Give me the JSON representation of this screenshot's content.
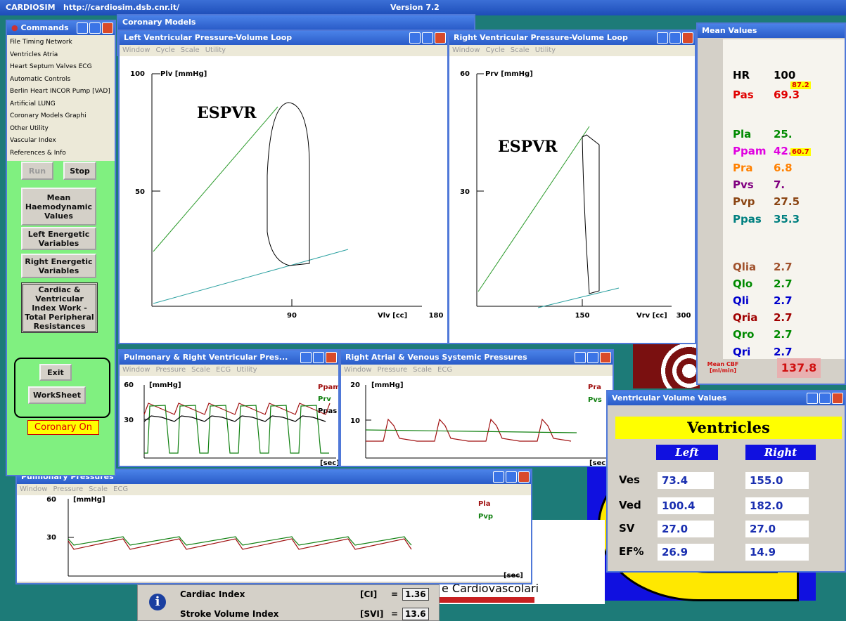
{
  "desktop": {
    "title": "CARDIOSIM",
    "url": "http://cardiosim.dsb.cnr.it/",
    "version": "Version 7.2",
    "background_text": "e Cardiovascolari"
  },
  "commands": {
    "title": "Commands",
    "menu": [
      "File  Timing  Network",
      "Ventricles  Atria",
      "Heart Septum  Valves  ECG",
      "Automatic Controls",
      "Berlin Heart INCOR Pump [VAD]",
      "Artificial LUNG",
      "Coronary Models  Graphi",
      "Other  Utility",
      "Vascular Index",
      "References & Info"
    ],
    "buttons": [
      "Run",
      "Stop",
      "Mean Haemodynamic Values",
      "Left Energetic Variables",
      "Right Energetic Variables",
      "Cardiac & Ventricular Index Work - Total Peripheral Resistances",
      "Exit",
      "WorkSheet"
    ],
    "status": "Coronary On"
  },
  "coronary": {
    "title": "Coronary Models"
  },
  "lv_loop": {
    "title": "Left Ventricular  Pressure-Volume Loop",
    "menu": [
      "Window",
      "Cycle",
      "Scale",
      "Utility"
    ],
    "y_label": "Plv [mmHg]",
    "x_label": "Vlv [cc]",
    "annotation": "ESPVR",
    "yticks": [
      100,
      50
    ],
    "xticks": [
      90,
      180
    ]
  },
  "rv_loop": {
    "title": "Right Ventricular  Pressure-Volume Loop",
    "menu": [
      "Window",
      "Cycle",
      "Scale",
      "Utility"
    ],
    "y_label": "Prv [mmHg]",
    "x_label": "Vrv [cc]",
    "annotation": "ESPVR",
    "yticks": [
      60,
      30
    ],
    "xticks": [
      150,
      300
    ]
  },
  "mean_values": {
    "title": "Mean Values",
    "rows": [
      [
        "HR",
        "100"
      ],
      [
        "Pas",
        "69.3"
      ],
      [
        "Pla",
        "25."
      ],
      [
        "Ppam",
        "42."
      ],
      [
        "Pra",
        "6.8"
      ],
      [
        "Pvs",
        "7."
      ],
      [
        "Pvp",
        "27.5"
      ],
      [
        "Ppas",
        "35.3"
      ],
      [
        "Qlia",
        "2.7"
      ],
      [
        "Qlo",
        "2.7"
      ],
      [
        "Qli",
        "2.7"
      ],
      [
        "Qria",
        "2.7"
      ],
      [
        "Qro",
        "2.7"
      ],
      [
        "Qri",
        "2.7"
      ]
    ],
    "badges": [
      "87.2",
      "60.7"
    ],
    "cbf_label": "Mean CBF [ml/min]",
    "cbf_value": "137.8"
  },
  "pulm_rv": {
    "title": "Pulmonary & Right Ventricular Pres...",
    "menu": [
      "Window",
      "Pressure",
      "Scale",
      "ECG",
      "Utility"
    ],
    "y_label": "[mmHg]",
    "x_label": "[sec]",
    "yticks": [
      60,
      30
    ],
    "legend": [
      "Ppam",
      "Prv",
      "Ppas"
    ]
  },
  "ra_venous": {
    "title": "Right Atrial & Venous Systemic Pressures",
    "menu": [
      "Window",
      "Pressure",
      "Scale",
      "ECG"
    ],
    "y_label": "[mmHg]",
    "x_label": "[sec]",
    "yticks": [
      20,
      10
    ],
    "legend": [
      "Pra",
      "Pvs"
    ]
  },
  "pulm": {
    "title": "Pulmonary Pressures",
    "menu": [
      "Window",
      "Pressure",
      "Scale",
      "ECG"
    ],
    "y_label": "[mmHg]",
    "x_label": "[sec]",
    "yticks": [
      60,
      30
    ],
    "legend": [
      "Pla",
      "Pvp"
    ]
  },
  "ventricles": {
    "title": "Ventricular Volume Values",
    "heading": "Ventricles",
    "columns": [
      "Left",
      "Right"
    ],
    "rows": [
      [
        "Ves",
        "73.4",
        "155.0"
      ],
      [
        "Ved",
        "100.4",
        "182.0"
      ],
      [
        "SV",
        "27.0",
        "27.0"
      ],
      [
        "EF%",
        "26.9",
        "14.9"
      ]
    ]
  },
  "index_panel": {
    "rows": [
      [
        "Cardiac Index",
        "[CI]",
        "=",
        "1.36"
      ],
      [
        "Stroke Volume Index",
        "[SVI]",
        "=",
        "13.6"
      ]
    ]
  }
}
